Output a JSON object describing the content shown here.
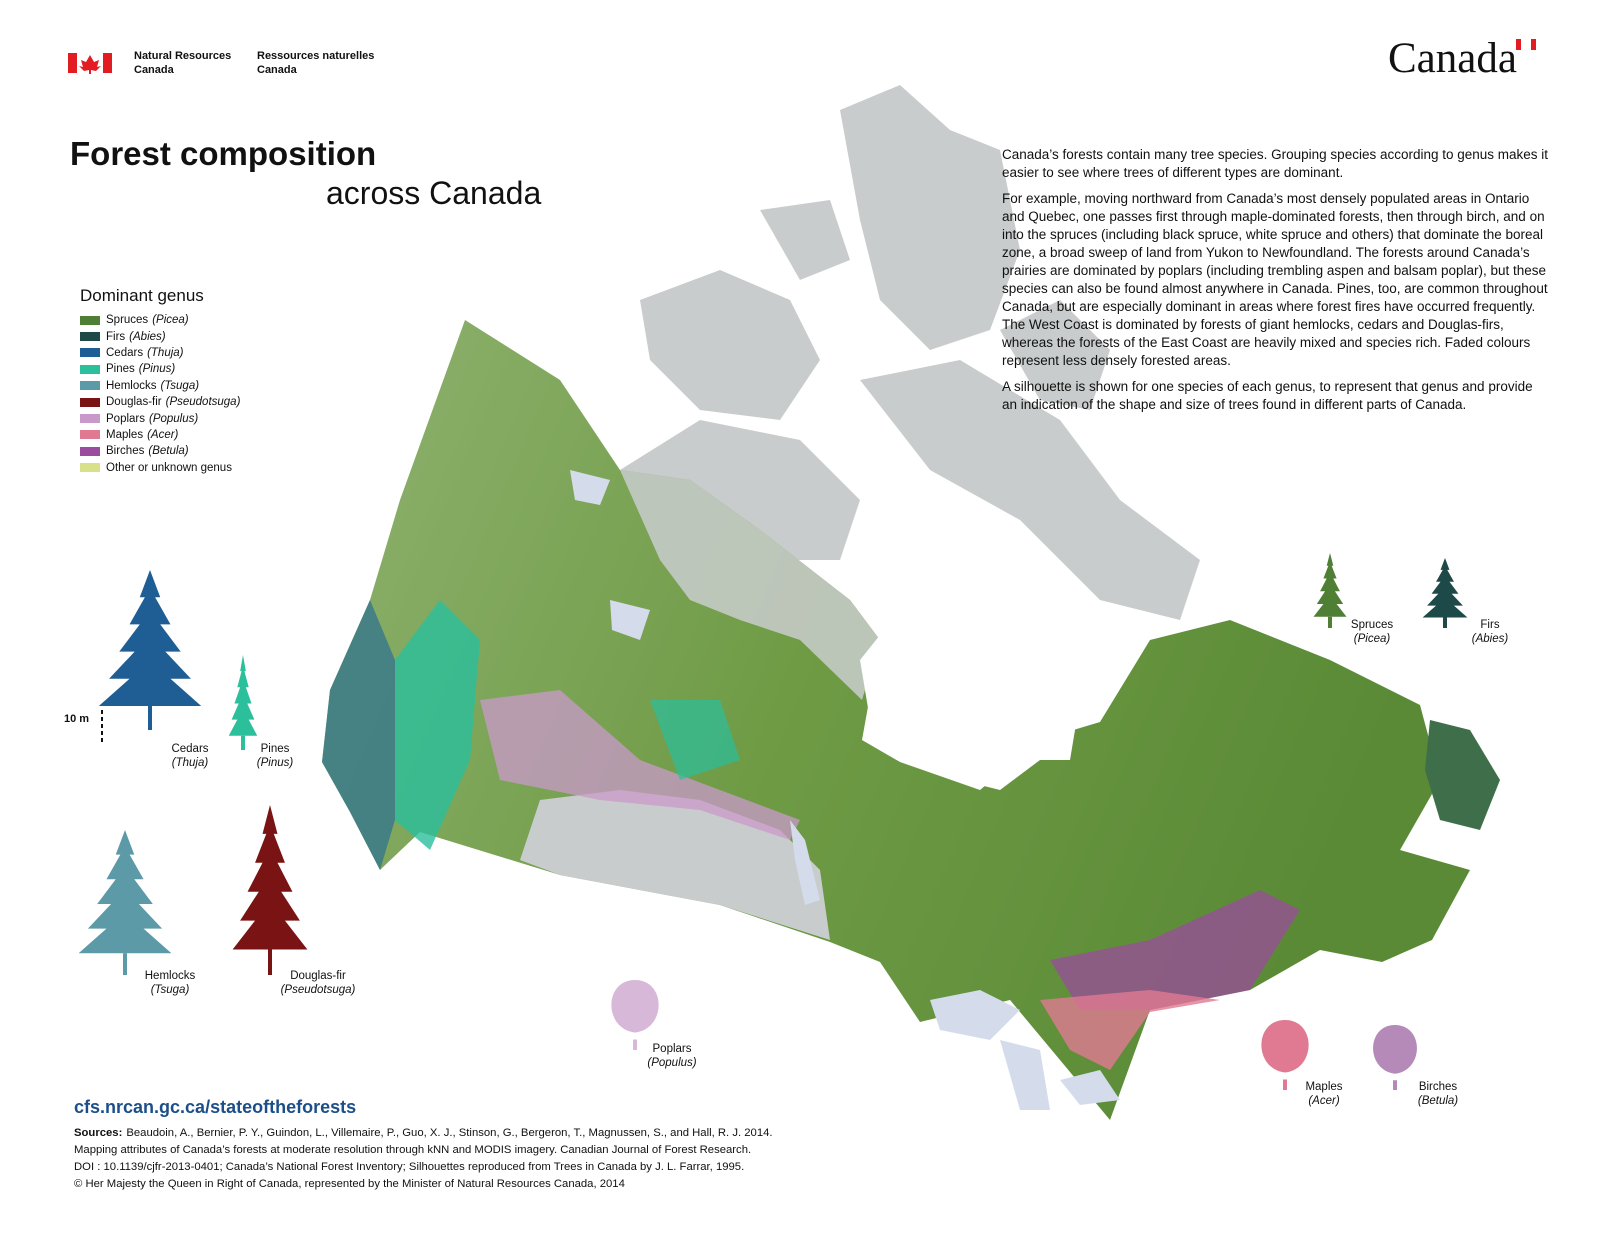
{
  "header": {
    "department_en": [
      "Natural Resources",
      "Canada"
    ],
    "department_fr": [
      "Ressources naturelles",
      "Canada"
    ],
    "wordmark": "Canada"
  },
  "title": {
    "line1": "Forest composition",
    "line2": "across Canada"
  },
  "legend": {
    "title": "Dominant genus",
    "items": [
      {
        "name": "Spruces",
        "genus": "(Picea)",
        "color": "#4f7f35"
      },
      {
        "name": "Firs",
        "genus": "(Abies)",
        "color": "#1d4a48"
      },
      {
        "name": "Cedars",
        "genus": "(Thuja)",
        "color": "#1f5e94"
      },
      {
        "name": "Pines",
        "genus": "(Pinus)",
        "color": "#2bbf9c"
      },
      {
        "name": "Hemlocks",
        "genus": "(Tsuga)",
        "color": "#5d9aa8"
      },
      {
        "name": "Douglas-fir",
        "genus": "(Pseudotsuga)",
        "color": "#7a1414"
      },
      {
        "name": "Poplars",
        "genus": "(Populus)",
        "color": "#c99ac9"
      },
      {
        "name": "Maples",
        "genus": "(Acer)",
        "color": "#e07a92"
      },
      {
        "name": "Birches",
        "genus": "(Betula)",
        "color": "#9b4c9c"
      },
      {
        "name": "Other or unknown genus",
        "color": "#d8e08a"
      }
    ]
  },
  "intro": [
    "Canada’s forests contain many tree species. Grouping species according to genus makes it easier to see where trees of different types are dominant.",
    "For example, moving northward from Canada’s most densely populated areas in Ontario and Quebec, one passes first through maple-dominated forests, then through birch, and on into the spruces (including black spruce, white spruce and others) that dominate the boreal zone, a broad sweep of land from Yukon to Newfoundland. The forests around Canada’s prairies are dominated by poplars (including trembling aspen and balsam poplar), but these species can also be found almost anywhere in Canada. Pines, too, are common throughout Canada, but are especially dominant in areas where forest fires have occurred frequently. The West Coast is dominated by forests of giant hemlocks, cedars and Douglas-firs, whereas the forests of the East Coast are heavily mixed and species rich. Faded colours represent less densely forested areas.",
    "A silhouette is shown for one species of each genus, to represent that genus and provide an indication of the shape and size of trees found in different parts of Canada."
  ],
  "scale_label": "10 m",
  "silhouettes": [
    {
      "name": "Cedars",
      "genus": "(Thuja)",
      "color": "#1f5e94"
    },
    {
      "name": "Pines",
      "genus": "(Pinus)",
      "color": "#2bbf9c"
    },
    {
      "name": "Hemlocks",
      "genus": "(Tsuga)",
      "color": "#5d9aa8"
    },
    {
      "name": "Douglas-fir",
      "genus": "(Pseudotsuga)",
      "color": "#7a1414"
    },
    {
      "name": "Poplars",
      "genus": "(Populus)",
      "color": "#d7b8d8"
    },
    {
      "name": "Spruces",
      "genus": "(Picea)",
      "color": "#4f7f35"
    },
    {
      "name": "Firs",
      "genus": "(Abies)",
      "color": "#1d4a48"
    },
    {
      "name": "Maples",
      "genus": "(Acer)",
      "color": "#e07a92"
    },
    {
      "name": "Birches",
      "genus": "(Betula)",
      "color": "#b68ab8"
    }
  ],
  "url": "cfs.nrcan.gc.ca/stateoftheforests",
  "sources": {
    "label": "Sources:",
    "lines": [
      "Beaudoin, A., Bernier, P. Y., Guindon, L., Villemaire, P., Guo, X. J., Stinson, G., Bergeron, T., Magnussen, S., and Hall, R. J. 2014.",
      "Mapping attributes of Canada’s forests at moderate resolution through kNN and MODIS imagery. Canadian Journal of Forest Research.",
      "DOI : 10.1139/cjfr-2013-0401; Canada’s National Forest Inventory; Silhouettes reproduced from Trees in Canada by  J. L. Farrar, 1995.",
      "© Her Majesty the Queen in Right of Canada, represented by the Minister of Natural Resources Canada, 2014"
    ]
  }
}
